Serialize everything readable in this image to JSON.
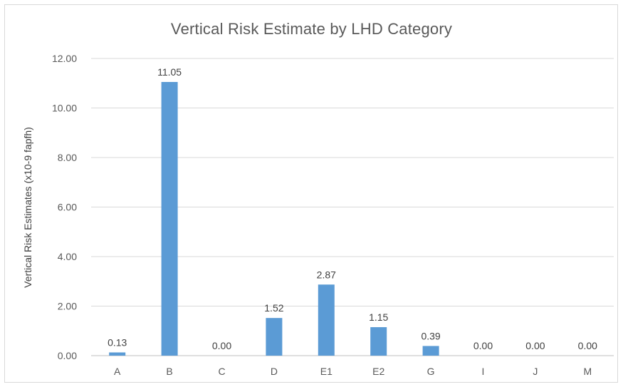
{
  "chart_data": {
    "type": "bar",
    "title": "Vertical Risk Estimate by LHD Category",
    "xlabel": "",
    "ylabel": "Vertical Risk Estimates (x10-9 fapfh)",
    "categories": [
      "A",
      "B",
      "C",
      "D",
      "E1",
      "E2",
      "G",
      "I",
      "J",
      "M"
    ],
    "values": [
      0.13,
      11.05,
      0.0,
      1.52,
      2.87,
      1.15,
      0.39,
      0.0,
      0.0,
      0.0
    ],
    "value_labels": [
      "0.13",
      "11.05",
      "0.00",
      "1.52",
      "2.87",
      "1.15",
      "0.39",
      "0.00",
      "0.00",
      "0.00"
    ],
    "ylim": [
      0,
      12
    ],
    "yticks": [
      "0.00",
      "2.00",
      "4.00",
      "6.00",
      "8.00",
      "10.00",
      "12.00"
    ],
    "grid": true,
    "legend": "none",
    "colors": {
      "bar": "#5b9bd5",
      "grid": "#d9d9d9",
      "axis_text": "#595959",
      "label_text": "#404040"
    }
  }
}
